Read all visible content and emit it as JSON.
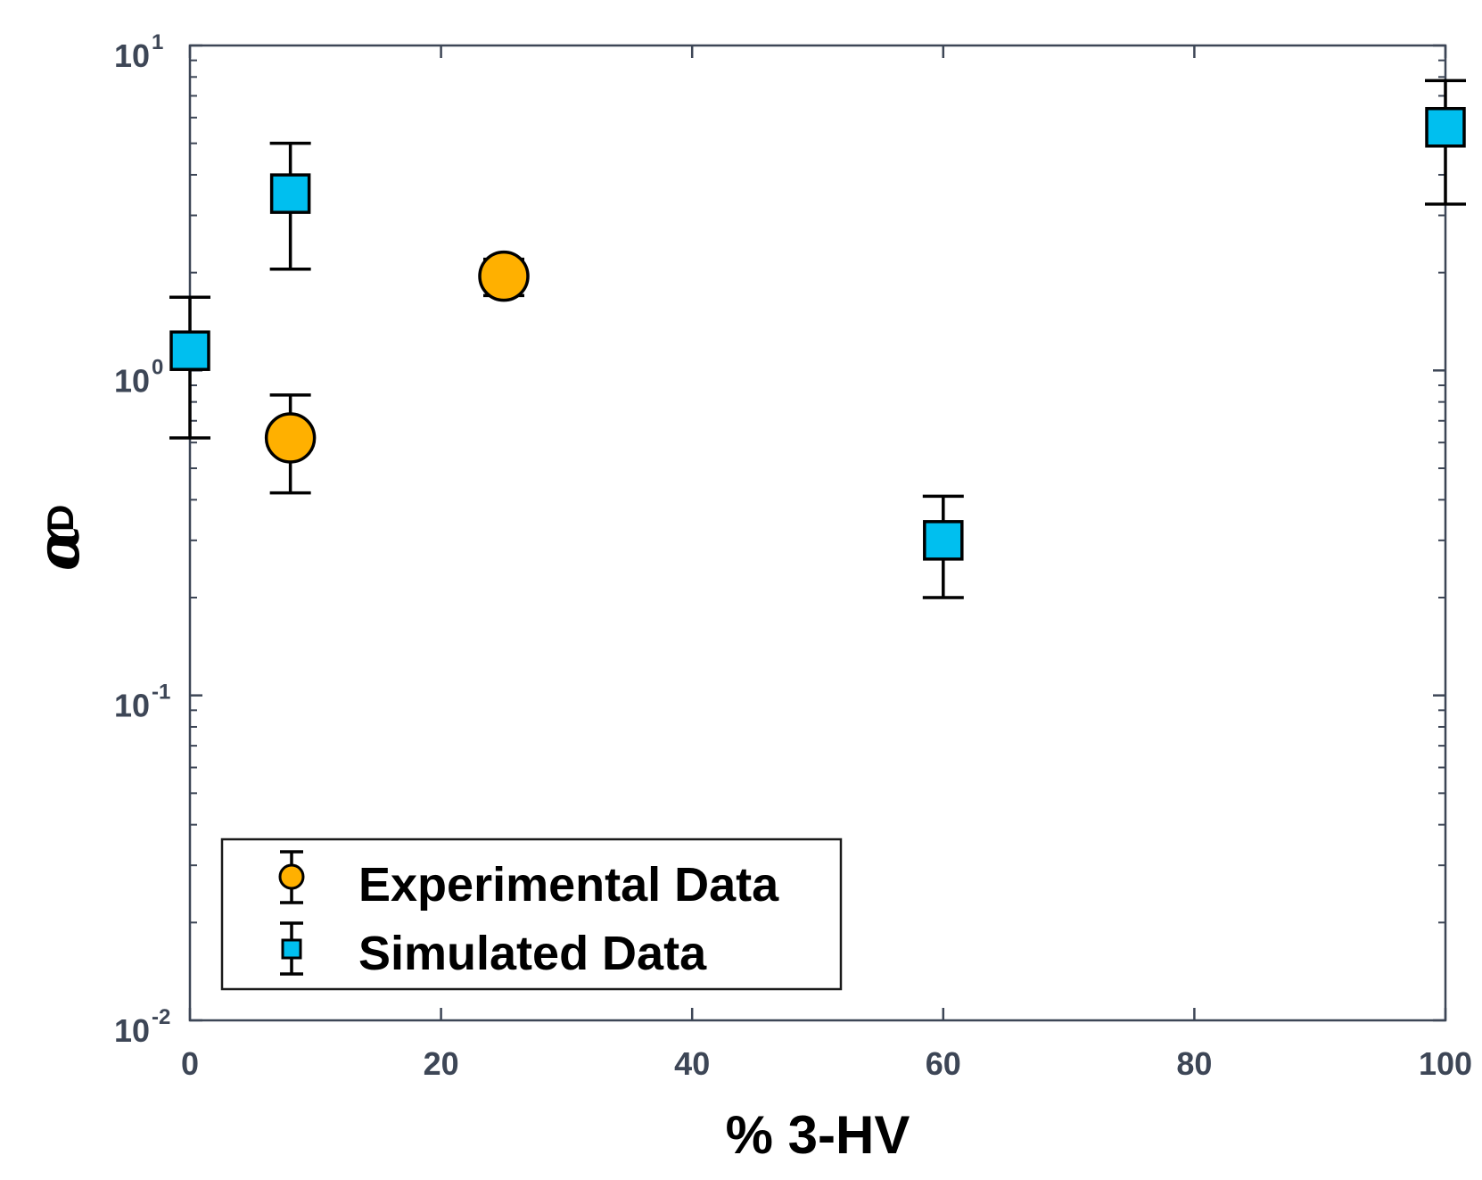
{
  "chart_data": {
    "type": "scatter",
    "title": "",
    "xlabel": "% 3-HV",
    "ylabel": {
      "symbol": "α",
      "superscript": "D"
    },
    "xlim": [
      0,
      100
    ],
    "ylim": [
      0.01,
      10
    ],
    "yscale": "log",
    "grid": false,
    "legend_position": "bottom-left",
    "x_ticks": [
      "0",
      "20",
      "40",
      "60",
      "80",
      "100"
    ],
    "x_tick_values": [
      0,
      20,
      40,
      60,
      80,
      100
    ],
    "y_ticks": [
      {
        "value": 10,
        "base": "10",
        "exp": "1"
      },
      {
        "value": 1,
        "base": "10",
        "exp": "0"
      },
      {
        "value": 0.1,
        "base": "10",
        "exp": "-1"
      },
      {
        "value": 0.01,
        "base": "10",
        "exp": "-2"
      }
    ],
    "series": [
      {
        "name": "Experimental Data",
        "marker": "circle",
        "color": "#FFB000",
        "points": [
          {
            "x": 8,
            "y": 0.62,
            "ylow": 0.42,
            "yhigh": 0.84
          },
          {
            "x": 25,
            "y": 1.95,
            "ylow": 1.7,
            "yhigh": 2.2
          }
        ]
      },
      {
        "name": "Simulated Data",
        "marker": "square",
        "color": "#00BFEF",
        "points": [
          {
            "x": 0,
            "y": 1.15,
            "ylow": 0.62,
            "yhigh": 1.68
          },
          {
            "x": 8,
            "y": 3.5,
            "ylow": 2.05,
            "yhigh": 5.0
          },
          {
            "x": 60,
            "y": 0.3,
            "ylow": 0.2,
            "yhigh": 0.41
          },
          {
            "x": 100,
            "y": 5.6,
            "ylow": 3.25,
            "yhigh": 7.8
          }
        ]
      }
    ]
  }
}
